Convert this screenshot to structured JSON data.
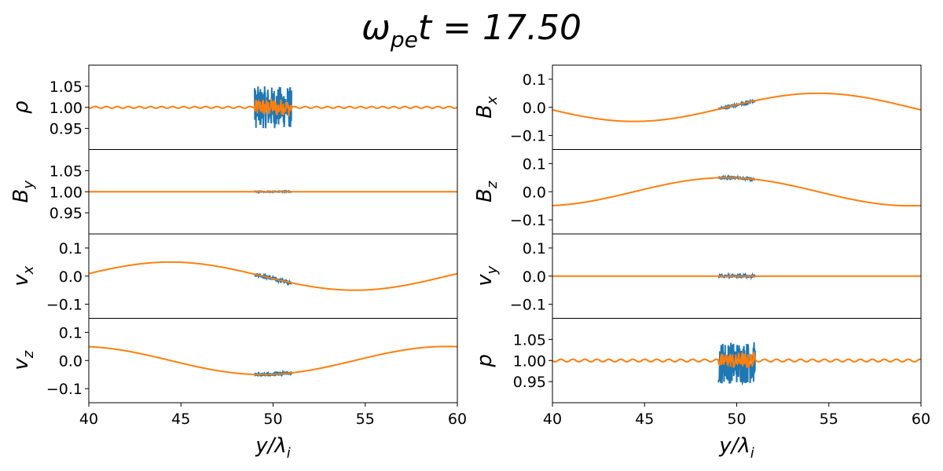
{
  "figure": {
    "title": "ω_pe t = 17.50",
    "title_symbol": "ω",
    "title_sub": "pe",
    "title_rest": "t = 17.50"
  },
  "chart_data": [
    {
      "type": "line",
      "panel": "rho",
      "column": "left",
      "row": 0,
      "ylabel": "ρ",
      "ylabel_sub": "",
      "ylim": [
        0.9,
        1.1
      ],
      "yticks": [
        0.95,
        1.0,
        1.05
      ],
      "ytick_labels": [
        "0.95",
        "1.00",
        "1.05"
      ],
      "xlim": [
        40,
        60
      ],
      "xticks": [
        40,
        45,
        50,
        55,
        60
      ],
      "show_xticks": false,
      "xlabel": "",
      "model": {
        "type": "ripple",
        "base": 1.0,
        "amp": 0.002,
        "period": 0.6
      },
      "noisy": {
        "type": "noise",
        "x_range": [
          49,
          51
        ],
        "base": 1.0,
        "spread": 0.05
      },
      "smooth_burst": {
        "x_range": [
          49,
          51
        ],
        "spread": 0.02
      },
      "series_colors": [
        "#1f77b4",
        "#ff7f0e"
      ]
    },
    {
      "type": "line",
      "panel": "By",
      "column": "left",
      "row": 1,
      "ylabel": "B",
      "ylabel_sub": "y",
      "ylim": [
        0.9,
        1.1
      ],
      "yticks": [
        0.95,
        1.0,
        1.05
      ],
      "ytick_labels": [
        "0.95",
        "1.00",
        "1.05"
      ],
      "xlim": [
        40,
        60
      ],
      "xticks": [
        40,
        45,
        50,
        55,
        60
      ],
      "show_xticks": false,
      "xlabel": "",
      "model": {
        "type": "const",
        "base": 1.0
      },
      "noisy": {
        "type": "noise",
        "x_range": [
          49,
          51
        ],
        "base": 1.0,
        "spread": 0.001
      },
      "series_colors": [
        "#1f77b4",
        "#ff7f0e"
      ]
    },
    {
      "type": "line",
      "panel": "vx",
      "column": "left",
      "row": 2,
      "ylabel": "v",
      "ylabel_sub": "x",
      "ylim": [
        -0.15,
        0.15
      ],
      "yticks": [
        -0.1,
        0.0,
        0.1
      ],
      "ytick_labels": [
        "−0.1",
        "0.0",
        "0.1"
      ],
      "xlim": [
        40,
        60
      ],
      "xticks": [
        40,
        45,
        50,
        55,
        60
      ],
      "show_xticks": false,
      "xlabel": "",
      "model": {
        "type": "sine",
        "amp": 0.05,
        "period": 20,
        "phase_x0": 40,
        "phase": -0.12
      },
      "noisy": {
        "type": "follow",
        "x_range": [
          49,
          51
        ],
        "spread": 0.006
      },
      "series_colors": [
        "#1f77b4",
        "#ff7f0e"
      ]
    },
    {
      "type": "line",
      "panel": "vz",
      "column": "left",
      "row": 3,
      "ylabel": "v",
      "ylabel_sub": "z",
      "ylim": [
        -0.15,
        0.15
      ],
      "yticks": [
        -0.1,
        0.0,
        0.1
      ],
      "ytick_labels": [
        "−0.1",
        "0.0",
        "0.1"
      ],
      "xlim": [
        40,
        60
      ],
      "xticks": [
        40,
        45,
        50,
        55,
        60
      ],
      "xtick_labels": [
        "40",
        "45",
        "50",
        "55",
        "60"
      ],
      "show_xticks": true,
      "xlabel": "y/λ",
      "xlabel_sub": "i",
      "model": {
        "type": "cos",
        "amp": 0.05,
        "period": 20,
        "phase_x0": 40,
        "phase": -0.12
      },
      "noisy": {
        "type": "follow",
        "x_range": [
          49,
          51
        ],
        "spread": 0.006
      },
      "series_colors": [
        "#1f77b4",
        "#ff7f0e"
      ]
    },
    {
      "type": "line",
      "panel": "Bx",
      "column": "right",
      "row": 0,
      "ylabel": "B",
      "ylabel_sub": "x",
      "ylim": [
        -0.15,
        0.15
      ],
      "yticks": [
        -0.1,
        0.0,
        0.1
      ],
      "ytick_labels": [
        "−0.1",
        "0.0",
        "0.1"
      ],
      "xlim": [
        40,
        60
      ],
      "xticks": [
        40,
        45,
        50,
        55,
        60
      ],
      "show_xticks": false,
      "xlabel": "",
      "model": {
        "type": "sine",
        "amp": -0.05,
        "period": 20,
        "phase_x0": 40,
        "phase": -0.12
      },
      "noisy": {
        "type": "follow",
        "x_range": [
          49,
          51
        ],
        "spread": 0.003
      },
      "series_colors": [
        "#1f77b4",
        "#ff7f0e"
      ]
    },
    {
      "type": "line",
      "panel": "Bz",
      "column": "right",
      "row": 1,
      "ylabel": "B",
      "ylabel_sub": "z",
      "ylim": [
        -0.15,
        0.15
      ],
      "yticks": [
        -0.1,
        0.0,
        0.1
      ],
      "ytick_labels": [
        "−0.1",
        "0.0",
        "0.1"
      ],
      "xlim": [
        40,
        60
      ],
      "xticks": [
        40,
        45,
        50,
        55,
        60
      ],
      "show_xticks": false,
      "xlabel": "",
      "model": {
        "type": "cos",
        "amp": -0.05,
        "period": 20,
        "phase_x0": 40,
        "phase": -0.12
      },
      "noisy": {
        "type": "follow",
        "x_range": [
          49,
          51
        ],
        "spread": 0.003
      },
      "series_colors": [
        "#1f77b4",
        "#ff7f0e"
      ]
    },
    {
      "type": "line",
      "panel": "vy",
      "column": "right",
      "row": 2,
      "ylabel": "v",
      "ylabel_sub": "y",
      "ylim": [
        -0.15,
        0.15
      ],
      "yticks": [
        -0.1,
        0.0,
        0.1
      ],
      "ytick_labels": [
        "−0.1",
        "0.0",
        "0.1"
      ],
      "xlim": [
        40,
        60
      ],
      "xticks": [
        40,
        45,
        50,
        55,
        60
      ],
      "show_xticks": false,
      "xlabel": "",
      "model": {
        "type": "const",
        "base": 0.0
      },
      "noisy": {
        "type": "noise",
        "x_range": [
          49,
          51
        ],
        "base": 0.0,
        "spread": 0.005
      },
      "series_colors": [
        "#1f77b4",
        "#ff7f0e"
      ]
    },
    {
      "type": "line",
      "panel": "p",
      "column": "right",
      "row": 3,
      "ylabel": "p",
      "ylabel_sub": "",
      "ylim": [
        0.9,
        1.1
      ],
      "yticks": [
        0.95,
        1.0,
        1.05
      ],
      "ytick_labels": [
        "0.95",
        "1.00",
        "1.05"
      ],
      "xlim": [
        40,
        60
      ],
      "xticks": [
        40,
        45,
        50,
        55,
        60
      ],
      "xtick_labels": [
        "40",
        "45",
        "50",
        "55",
        "60"
      ],
      "show_xticks": true,
      "xlabel": "y/λ",
      "xlabel_sub": "i",
      "model": {
        "type": "ripple",
        "base": 1.0,
        "amp": 0.003,
        "period": 0.65
      },
      "noisy": {
        "type": "noise",
        "x_range": [
          49,
          51
        ],
        "base": 0.995,
        "spread": 0.05
      },
      "smooth_burst": {
        "x_range": [
          49,
          51
        ],
        "spread": 0.018
      },
      "series_colors": [
        "#1f77b4",
        "#ff7f0e"
      ]
    }
  ]
}
